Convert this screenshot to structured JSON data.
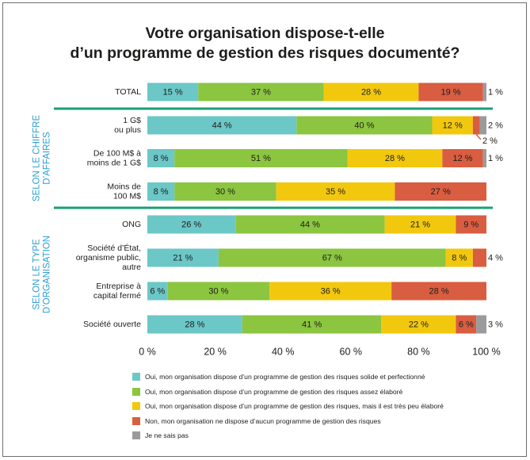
{
  "title_lines": [
    "Votre organisation dispose-t-elle",
    "d’un programme de gestion des risques documenté?"
  ],
  "colors": {
    "solide": "#6cc7c7",
    "assez": "#8cc540",
    "peu": "#f2c80f",
    "aucun": "#d95d41",
    "ne_sais": "#9a9b9c",
    "divider": "#1b9e77",
    "group_label": "#2b9fd3"
  },
  "groups": [
    {
      "label_lines": [
        "SELON LE CHIFFRE",
        "D’AFFAIRES"
      ],
      "rows": [
        1,
        2,
        3
      ]
    },
    {
      "label_lines": [
        "SELON LE TYPE",
        "D’ORGANISATION"
      ],
      "rows": [
        4,
        5,
        6,
        7
      ]
    }
  ],
  "chart_data": {
    "type": "bar",
    "orientation": "horizontal",
    "stacked": true,
    "xlim": [
      0,
      100
    ],
    "x_ticks": [
      "0 %",
      "20 %",
      "40 %",
      "60 %",
      "80 %",
      "100 %"
    ],
    "categories": [
      [
        "TOTAL"
      ],
      [
        "1 G$",
        "ou plus"
      ],
      [
        "De 100 M$ à",
        "moins de 1 G$"
      ],
      [
        "Moins de",
        "100 M$"
      ],
      [
        "ONG"
      ],
      [
        "Société d’État,",
        "organisme public,",
        "autre"
      ],
      [
        "Entreprise à",
        "capital fermé"
      ],
      [
        "Société ouverte"
      ]
    ],
    "series": [
      {
        "name": "Oui, mon organisation dispose d’un programme de gestion des risques solide et perfectionné",
        "color": "#6cc7c7",
        "values": [
          15,
          44,
          8,
          8,
          26,
          21,
          6,
          28
        ]
      },
      {
        "name": "Oui, mon organisation dispose d’un programme de gestion des risques assez élaboré",
        "color": "#8cc540",
        "values": [
          37,
          40,
          51,
          30,
          44,
          67,
          30,
          41
        ]
      },
      {
        "name": "Oui, mon organisation dispose d’un programme de gestion des risques, mais il est très peu élaboré",
        "color": "#f2c80f",
        "values": [
          28,
          12,
          28,
          35,
          21,
          8,
          36,
          22
        ]
      },
      {
        "name": "Non, mon organisation ne dispose d’aucun programme de gestion des risques",
        "color": "#d95d41",
        "values": [
          19,
          2,
          12,
          27,
          9,
          4,
          28,
          6
        ]
      },
      {
        "name": "Je ne sais pas",
        "color": "#9a9b9c",
        "values": [
          1,
          2,
          1,
          0,
          0,
          0,
          0,
          3
        ]
      }
    ],
    "data_labels": [
      [
        "15 %",
        "37 %",
        "28 %",
        "19 %",
        "1 %"
      ],
      [
        "44 %",
        "40 %",
        "12 %",
        "2 %",
        "2 %"
      ],
      [
        "8 %",
        "51 %",
        "28 %",
        "12 %",
        "1 %"
      ],
      [
        "8 %",
        "30 %",
        "35 %",
        "27 %",
        ""
      ],
      [
        "26 %",
        "44 %",
        "21 %",
        "9 %",
        ""
      ],
      [
        "21 %",
        "67 %",
        "8 %",
        "4 %",
        ""
      ],
      [
        "6 %",
        "30 %",
        "36 %",
        "28 %",
        ""
      ],
      [
        "28 %",
        "41 %",
        "22 %",
        "6 %",
        "3 %"
      ]
    ],
    "legend_position": "bottom-left",
    "grid": false
  }
}
